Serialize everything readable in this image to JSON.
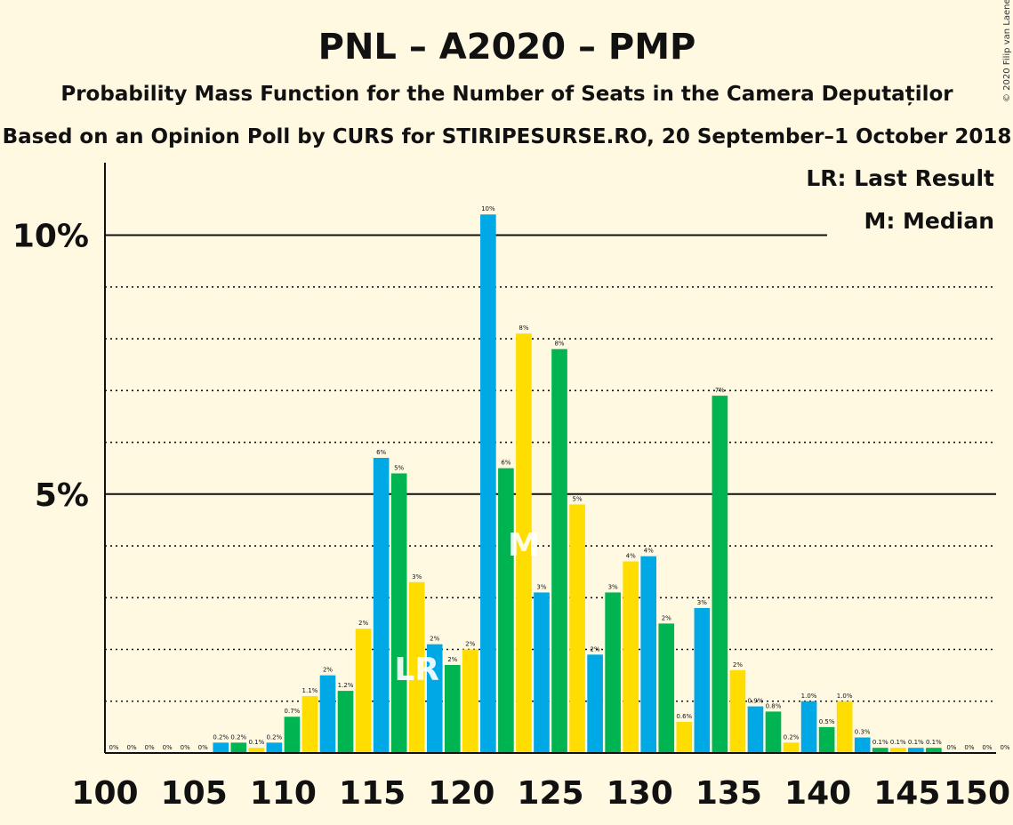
{
  "copyright": "© 2020 Filip van Laenen",
  "chart_data": {
    "type": "bar",
    "title": "PNL – A2020 – PMP",
    "subtitle1": "Probability Mass Function for the Number of Seats in the Camera Deputaților",
    "subtitle2": "Based on an Opinion Poll by CURS for STIRIPESURSE.RO, 20 September–1 October 2018",
    "legend": {
      "lr": "LR: Last Result",
      "m": "M: Median",
      "placement": "top-right"
    },
    "y_ticks": [
      {
        "value": 5,
        "label": "5%"
      },
      {
        "value": 10,
        "label": "10%"
      }
    ],
    "x_ticks": [
      100,
      105,
      110,
      115,
      120,
      125,
      130,
      135,
      140,
      145,
      150
    ],
    "xlim": [
      100,
      150
    ],
    "ylim": [
      0,
      11.4
    ],
    "grid": "solid at 5% and 10%, dotted at every other 1%",
    "colors": {
      "blue": "#00A8E6",
      "green": "#00B551",
      "yellow": "#FFDD00"
    },
    "seats": [
      100,
      101,
      102,
      103,
      104,
      105,
      106,
      107,
      108,
      109,
      110,
      111,
      112,
      113,
      114,
      115,
      116,
      117,
      118,
      119,
      120,
      121,
      122,
      123,
      124,
      125,
      126,
      127,
      128,
      129,
      130,
      131,
      132,
      133,
      134,
      135,
      136,
      137,
      138,
      139,
      140,
      141,
      142,
      143,
      144,
      145,
      146,
      147,
      148,
      149,
      150
    ],
    "values": [
      0,
      0,
      0,
      0,
      0,
      0,
      0.2,
      0.2,
      0.1,
      0.2,
      0.7,
      1.1,
      1.5,
      1.2,
      2.4,
      5.7,
      5.4,
      3.3,
      2.1,
      1.7,
      2.0,
      10.4,
      5.5,
      8.1,
      3.1,
      7.8,
      4.8,
      1.9,
      3.1,
      3.7,
      3.8,
      2.5,
      0.6,
      2.8,
      6.9,
      1.6,
      0.9,
      0.8,
      0.2,
      1.0,
      0.5,
      1.0,
      0.3,
      0.1,
      0.1,
      0.1,
      0.1,
      0,
      0,
      0,
      0
    ],
    "labels": [
      "0%",
      "0%",
      "0%",
      "0%",
      "0%",
      "0%",
      "0.2%",
      "0.2%",
      "0.1%",
      "0.2%",
      "0.7%",
      "1.1%",
      "2%",
      "1.2%",
      "2%",
      "6%",
      "5%",
      "3%",
      "2%",
      "2%",
      "2%",
      "10%",
      "6%",
      "8%",
      "3%",
      "8%",
      "5%",
      "2%",
      "3%",
      "4%",
      "4%",
      "2%",
      "0.6%",
      "3%",
      "7%",
      "2%",
      "0.9%",
      "0.8%",
      "0.2%",
      "1.0%",
      "0.5%",
      "1.0%",
      "0.3%",
      "0.1%",
      "0.1%",
      "0.1%",
      "0.1%",
      "0%",
      "0%",
      "0%",
      "0%"
    ],
    "last_result": {
      "seat": 117,
      "label": "LR"
    },
    "median": {
      "seat": 123,
      "label": "M"
    }
  }
}
